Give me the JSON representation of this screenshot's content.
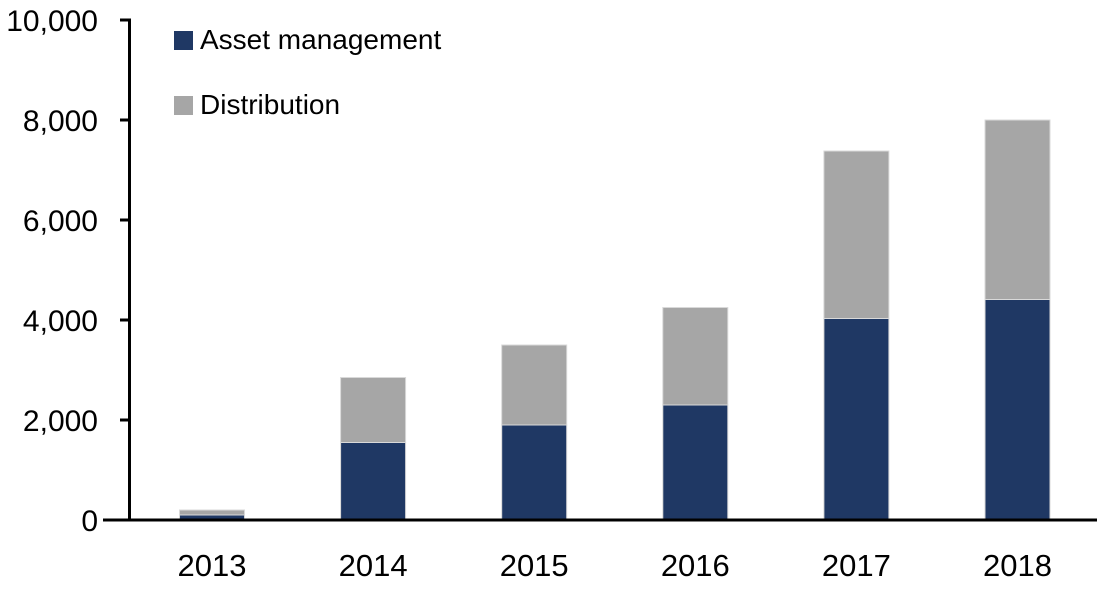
{
  "chart_data": {
    "type": "bar",
    "stacked": true,
    "title": "",
    "categories": [
      "2013",
      "2014",
      "2015",
      "2016",
      "2017",
      "2018"
    ],
    "series": [
      {
        "name": "Asset management",
        "color": "#1F3864",
        "values": [
          100,
          1550,
          1900,
          2300,
          4030,
          4410
        ]
      },
      {
        "name": "Distribution",
        "color": "#A6A6A6",
        "values": [
          100,
          1300,
          1600,
          1950,
          3350,
          3590
        ]
      }
    ],
    "totals": [
      200,
      2850,
      3500,
      4250,
      7380,
      8000
    ],
    "xlabel": "",
    "ylabel": "",
    "ylim": [
      0,
      10000
    ],
    "ytick_interval": 2000,
    "ytick_labels": [
      "0",
      "2,000",
      "4,000",
      "6,000",
      "8,000",
      "10,000"
    ],
    "grid": false,
    "legend_position": "top-left",
    "bar_outline_color": "#D9D9D9",
    "axis_color": "#000000"
  }
}
